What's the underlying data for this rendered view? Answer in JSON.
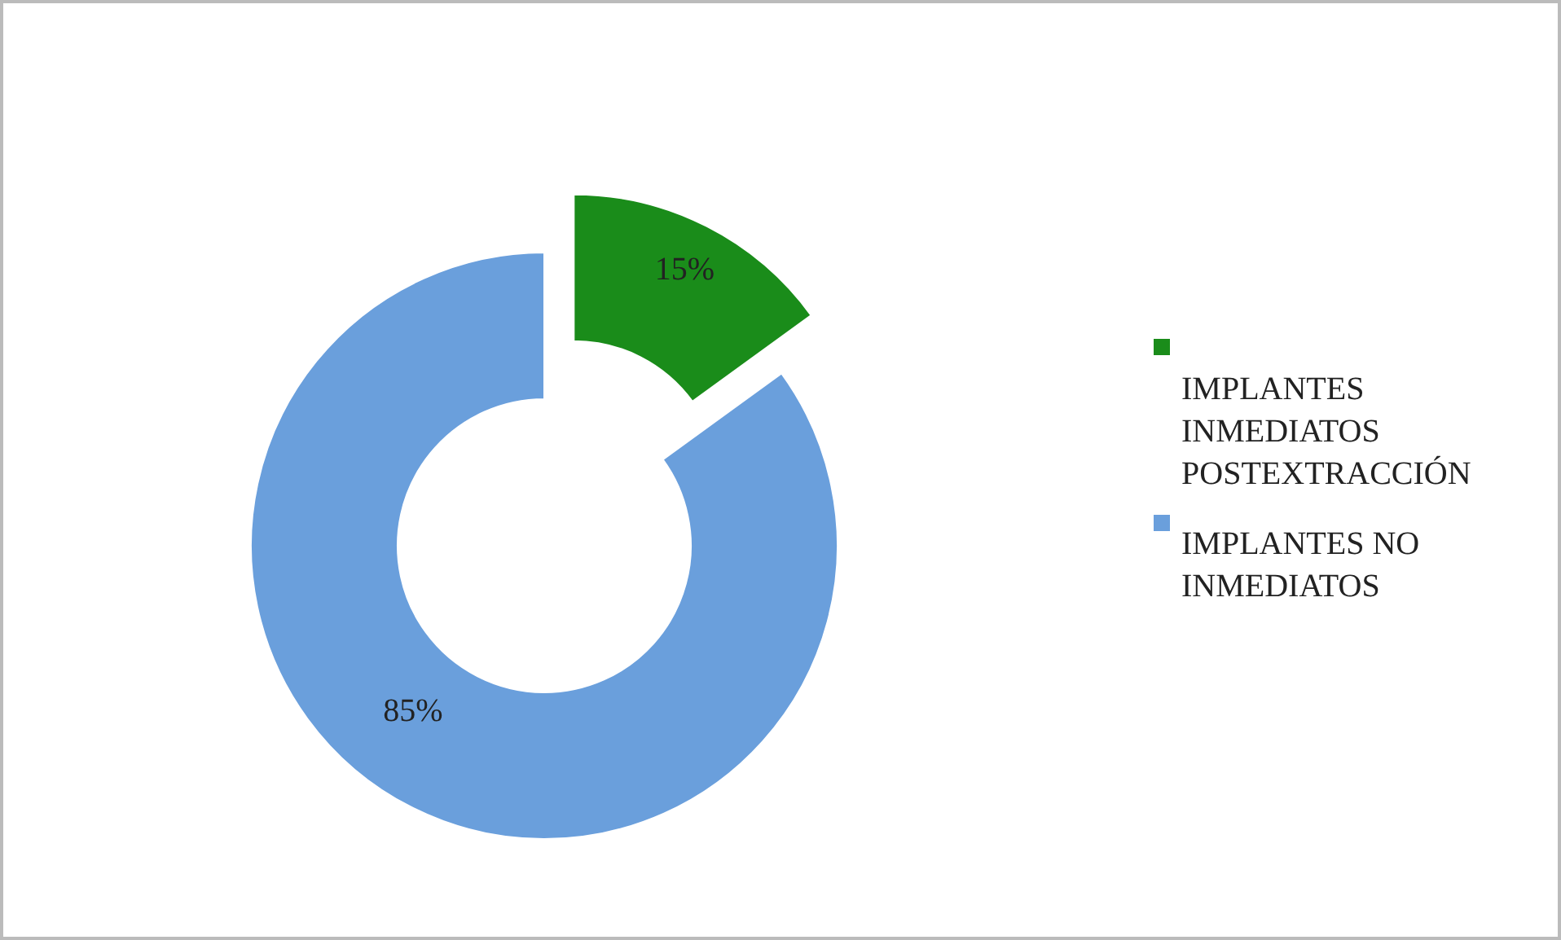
{
  "chart_data": {
    "type": "donut",
    "categories": [
      "IMPLANTES INMEDIATOS POSTEXTRACCIÓN",
      "IMPLANTES NO INMEDIATOS"
    ],
    "values": [
      15,
      85
    ],
    "colors": [
      "#1a8c1a",
      "#6a9fdc"
    ],
    "value_labels": [
      "15%",
      "85%"
    ],
    "legend": "right"
  }
}
